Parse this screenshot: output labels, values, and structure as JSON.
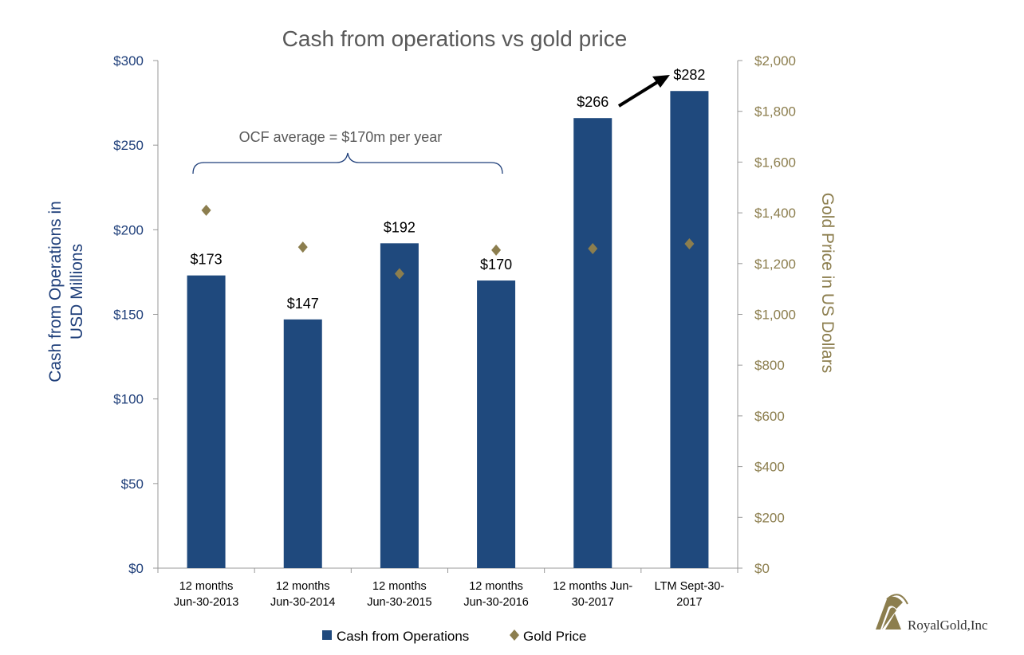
{
  "chart_data": {
    "type": "bar",
    "title": "Cash from operations vs gold price",
    "categories": [
      [
        "12 months",
        "Jun-30-2013"
      ],
      [
        "12 months",
        "Jun-30-2014"
      ],
      [
        "12 months",
        "Jun-30-2015"
      ],
      [
        "12 months",
        "Jun-30-2016"
      ],
      [
        "12 months Jun-",
        "30-2017"
      ],
      [
        "LTM Sept-30-",
        "2017"
      ]
    ],
    "series": [
      {
        "name": "Cash from Operations",
        "type": "bar",
        "axis": "left",
        "color": "#1f497d",
        "values": [
          173,
          147,
          192,
          170,
          266,
          282
        ],
        "labels": [
          "$173",
          "$147",
          "$192",
          "$170",
          "$266",
          "$282"
        ]
      },
      {
        "name": "Gold Price",
        "type": "scatter",
        "axis": "right",
        "marker": "diamond",
        "color": "#8c7e4e",
        "values": [
          1410,
          1265,
          1160,
          1253,
          1259,
          1278
        ]
      }
    ],
    "ylabel": "Cash from Operations in USD Millions",
    "ylabel_lines": [
      "Cash from Operations in",
      "USD Millions"
    ],
    "y2label": "Gold Price in US Dollars",
    "ylim": [
      0,
      300
    ],
    "y2lim": [
      0,
      2000
    ],
    "yticks": [
      "$0",
      "$50",
      "$100",
      "$150",
      "$200",
      "$250",
      "$300"
    ],
    "y2ticks": [
      "$0",
      "$200",
      "$400",
      "$600",
      "$800",
      "$1,000",
      "$1,200",
      "$1,400",
      "$1,600",
      "$1,800",
      "$2,000"
    ],
    "grid": false,
    "legend_placement": "bottom",
    "annotations": {
      "ocf_average": "OCF average = $170m per year",
      "arrow": "increase from $266 to $282"
    },
    "colors": {
      "axis_left_text": "#1f3f7a",
      "axis_right_text": "#8c7e4e",
      "title": "#595959"
    }
  },
  "logo": {
    "text": "RoyalGold,Inc",
    "color": "#8c7e4e"
  }
}
